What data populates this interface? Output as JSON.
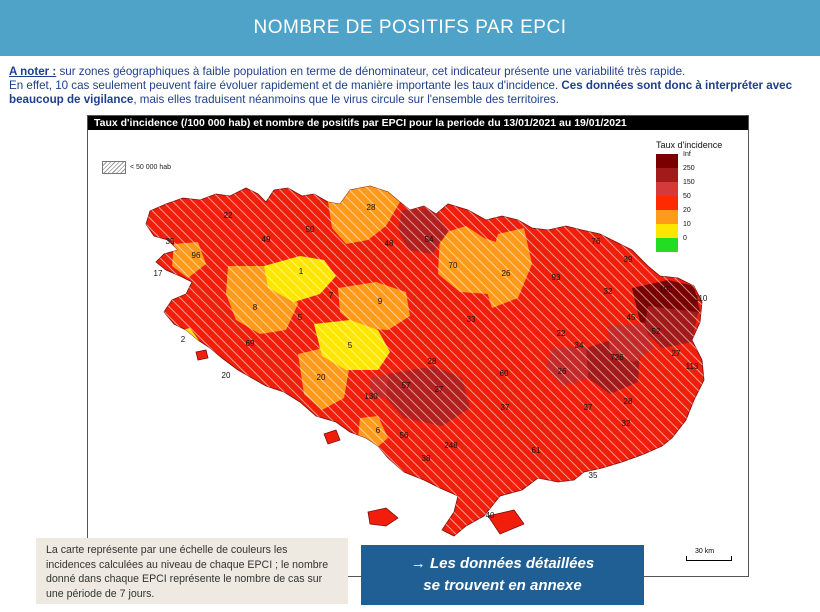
{
  "header": {
    "title": "NOMBRE DE POSITIFS PAR EPCI"
  },
  "note": {
    "label": "A noter :",
    "text1": " sur zones géographiques à faible population en terme de dénominateur, cet indicateur présente une variabilité très rapide.",
    "text2": "En effet, 10 cas seulement peuvent faire évoluer rapidement et de manière importante les taux d'incidence. ",
    "bold": "Ces données sont donc à interpréter avec beaucoup de vigilance",
    "text3": ", mais elles traduisent néanmoins que le virus circule sur l'ensemble des territoires."
  },
  "map": {
    "title": "Taux d'incidence (/100 000 hab) et nombre de positifs par EPCI pour la periode du 13/01/2021 au 19/01/2021",
    "hatch_label": "< 50 000 hab",
    "scale_label": "30 km",
    "legend": {
      "title": "Taux d'incidence",
      "items": [
        {
          "label": "Inf",
          "color": "#7a0000"
        },
        {
          "label": "250",
          "color": "#a31a1a"
        },
        {
          "label": "150",
          "color": "#d43a3a"
        },
        {
          "label": "50",
          "color": "#ff2a00"
        },
        {
          "label": "20",
          "color": "#ff9a1a"
        },
        {
          "label": "10",
          "color": "#ffe600"
        },
        {
          "label": "0",
          "color": "#22dd22"
        }
      ]
    },
    "epcis": [
      {
        "label": "22"
      },
      {
        "label": "35"
      },
      {
        "label": "49"
      },
      {
        "label": "50"
      },
      {
        "label": "28"
      },
      {
        "label": "48"
      },
      {
        "label": "54"
      },
      {
        "label": "70"
      },
      {
        "label": "26"
      },
      {
        "label": "76"
      },
      {
        "label": "93"
      },
      {
        "label": "32"
      },
      {
        "label": "39"
      },
      {
        "label": "192"
      },
      {
        "label": "110"
      },
      {
        "label": "96"
      },
      {
        "label": "17"
      },
      {
        "label": "1"
      },
      {
        "label": "8"
      },
      {
        "label": "5"
      },
      {
        "label": "7"
      },
      {
        "label": "9"
      },
      {
        "label": "33"
      },
      {
        "label": "45"
      },
      {
        "label": "52"
      },
      {
        "label": "2"
      },
      {
        "label": "69"
      },
      {
        "label": "5"
      },
      {
        "label": "22"
      },
      {
        "label": "726"
      },
      {
        "label": "34"
      },
      {
        "label": "27"
      },
      {
        "label": "113"
      },
      {
        "label": "27"
      },
      {
        "label": "28"
      },
      {
        "label": "20"
      },
      {
        "label": "57"
      },
      {
        "label": "60"
      },
      {
        "label": "26"
      },
      {
        "label": "28"
      },
      {
        "label": "20"
      },
      {
        "label": "130"
      },
      {
        "label": "37"
      },
      {
        "label": "32"
      },
      {
        "label": "37"
      },
      {
        "label": "6"
      },
      {
        "label": "56"
      },
      {
        "label": "248"
      },
      {
        "label": "61"
      },
      {
        "label": "35"
      },
      {
        "label": "40"
      },
      {
        "label": "38"
      }
    ]
  },
  "caption": "La carte représente par une échelle de couleurs les incidences calculées au niveau de chaque EPCI ; le nombre donné dans chaque EPCI représente le nombre de cas sur une période de 7 jours.",
  "annex": {
    "line1": "→ Les données détaillées",
    "line2": "se trouvent en annexe"
  }
}
